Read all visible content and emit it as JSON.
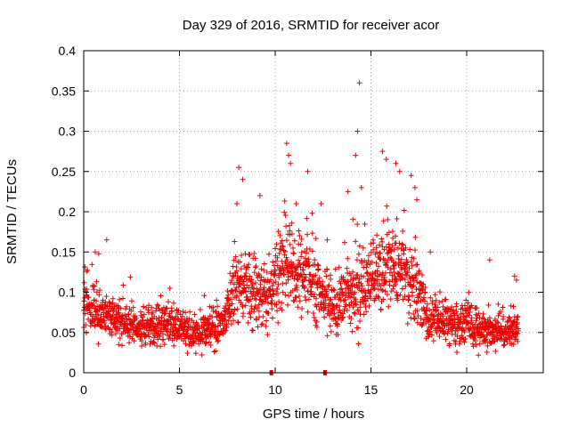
{
  "chart_data": {
    "type": "scatter",
    "title": "Day 329 of 2016, SRMTID for receiver acor",
    "xlabel": "GPS time / hours",
    "ylabel": "SRMTID / TECUs",
    "xlim": [
      0,
      24
    ],
    "ylim": [
      0,
      0.4
    ],
    "xticks": [
      0,
      5,
      10,
      15,
      20
    ],
    "xtick_labels": [
      "0",
      "5",
      "10",
      "15",
      "20"
    ],
    "yticks": [
      0,
      0.05,
      0.1,
      0.15,
      0.2,
      0.25,
      0.3,
      0.35,
      0.4
    ],
    "ytick_labels": [
      "0",
      "0.05",
      "0.1",
      "0.15",
      "0.2",
      "0.25",
      "0.3",
      "0.35",
      "0.4"
    ],
    "grid": true,
    "marker": "+",
    "color": "#ee0000",
    "x_axis_markers": [
      9.8,
      12.6
    ],
    "series": [
      {
        "name": "SRMTID",
        "profile": {
          "hours": [
            0,
            1,
            2,
            3,
            4,
            5,
            6,
            7,
            7.5,
            8,
            9,
            10,
            10.5,
            11,
            12,
            13,
            14,
            15,
            16,
            17,
            17.5,
            18,
            19,
            20,
            21,
            22,
            22.7
          ],
          "median": [
            0.085,
            0.075,
            0.06,
            0.055,
            0.06,
            0.055,
            0.045,
            0.06,
            0.075,
            0.12,
            0.09,
            0.105,
            0.135,
            0.125,
            0.115,
            0.08,
            0.1,
            0.115,
            0.13,
            0.125,
            0.1,
            0.065,
            0.06,
            0.06,
            0.05,
            0.05,
            0.055
          ]
        },
        "x": [
          0.6,
          1.2,
          8.0,
          8.1,
          8.3,
          9.2,
          10.6,
          10.7,
          10.8,
          11.1,
          11.7,
          12.4,
          13.8,
          14.2,
          14.3,
          14.4,
          14.5,
          15.6,
          15.8,
          16.3,
          16.5,
          17.1,
          17.3,
          17.4,
          18.1,
          21.2,
          22.5,
          22.6
        ],
        "y": [
          0.15,
          0.165,
          0.21,
          0.255,
          0.24,
          0.22,
          0.285,
          0.27,
          0.26,
          0.21,
          0.25,
          0.21,
          0.225,
          0.27,
          0.3,
          0.36,
          0.23,
          0.275,
          0.265,
          0.26,
          0.25,
          0.245,
          0.23,
          0.215,
          0.15,
          0.14,
          0.12,
          0.115
        ]
      }
    ]
  }
}
